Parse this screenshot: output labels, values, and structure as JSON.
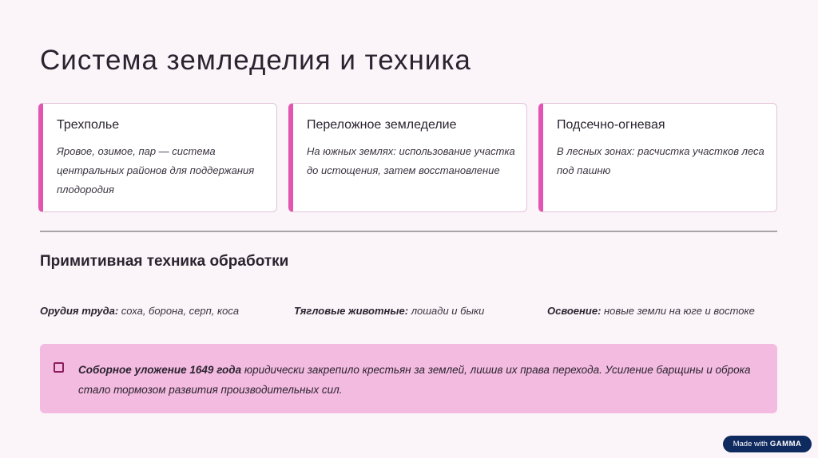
{
  "title": "Система земледелия и техника",
  "cards": [
    {
      "heading": "Трехполье",
      "text": "Яровое, озимое, пар — система центральных районов для поддержания плодородия"
    },
    {
      "heading": "Переложное земледелие",
      "text": "На южных землях: использование участка до истощения, затем восстановление"
    },
    {
      "heading": "Подсечно-огневая",
      "text": "В лесных зонах: расчистка участков леса под пашню"
    }
  ],
  "subtitle": "Примитивная техника обработки",
  "facts": [
    {
      "label": "Орудия труда:",
      "value": " соха, борона, серп, коса"
    },
    {
      "label": "Тягловые животные:",
      "value": " лошади и быки"
    },
    {
      "label": "Освоение:",
      "value": " новые земли на юге и востоке"
    }
  ],
  "note": {
    "bold": "Соборное уложение 1649 года",
    "text": " юридически закрепило крестьян за землей, лишив их права перехода. Усиление барщины и оброка стало тормозом развития производительных сил.",
    "icon": "sticky-note-icon"
  },
  "badge": {
    "prefix": "Made with",
    "brand": "GAMMA"
  },
  "colors": {
    "accent": "#e255b1",
    "note_bg": "#f3bbe0",
    "badge_bg": "#0f2a5e"
  }
}
